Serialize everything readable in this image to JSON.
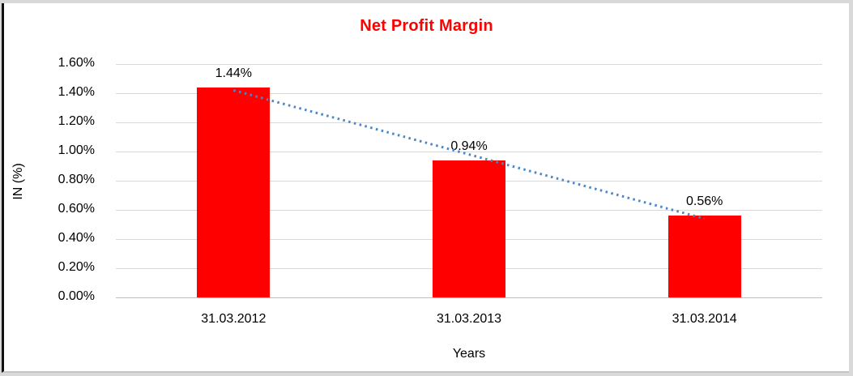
{
  "chart_data": {
    "type": "bar",
    "title": "Net Profit Margin",
    "title_color": "#FF0000",
    "categories": [
      "31.03.2012",
      "31.03.2013",
      "31.03.2014"
    ],
    "values": [
      1.44,
      0.94,
      0.56
    ],
    "data_labels": [
      "1.44%",
      "0.94%",
      "0.56%"
    ],
    "xlabel": "Years",
    "ylabel": "IN (%)",
    "ylim": [
      0,
      1.6
    ],
    "ytick_step": 0.2,
    "yticks": [
      "1.60%",
      "1.40%",
      "1.20%",
      "1.00%",
      "0.80%",
      "0.60%",
      "0.40%",
      "0.20%",
      "0.00%"
    ],
    "grid": true,
    "legend": "none",
    "bar_color": "#FF0000",
    "gridline_color": "#D9D9D9",
    "axis_line_color": "#BFBFBF",
    "trendline": {
      "type": "linear",
      "style": "dotted",
      "color": "#4A86C8",
      "fit_values": [
        1.42,
        0.98,
        0.54
      ]
    }
  }
}
